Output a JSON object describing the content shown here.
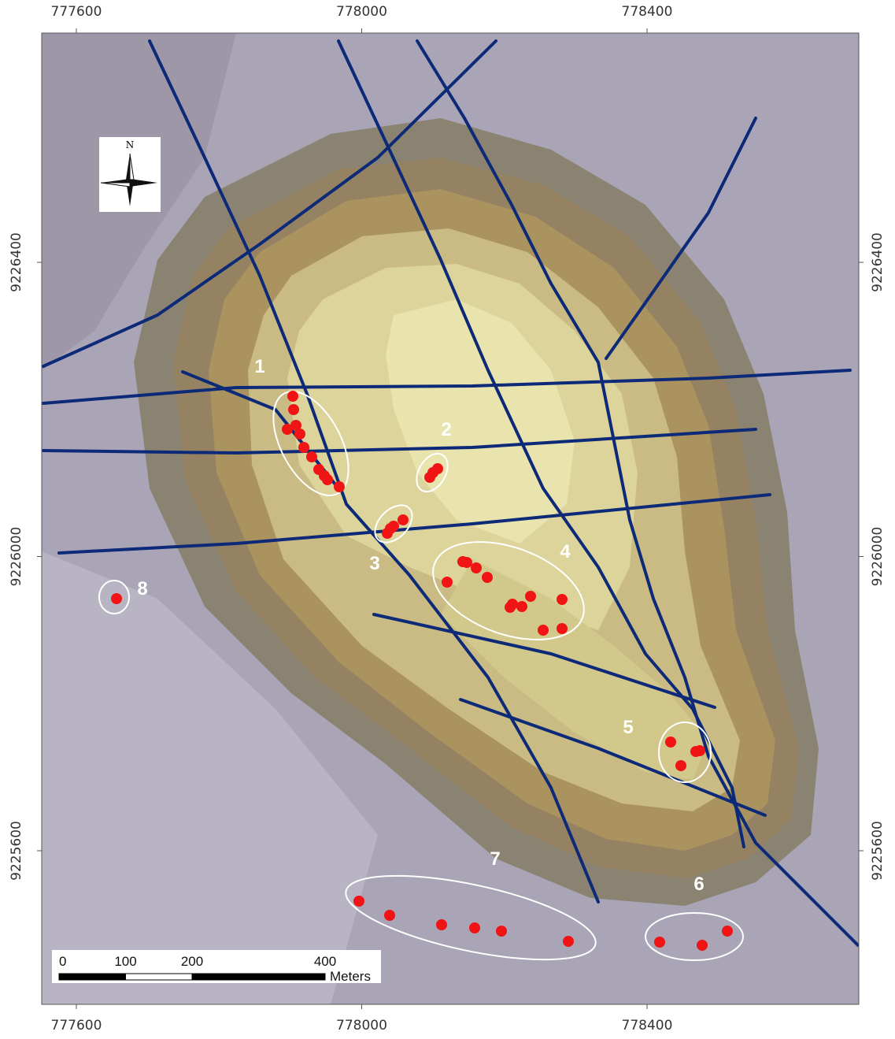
{
  "map": {
    "x_ticks": [
      777600,
      778000,
      778400
    ],
    "y_ticks": [
      9226400,
      9226000,
      9225600
    ],
    "clusters": [
      "1",
      "2",
      "3",
      "4",
      "5",
      "6",
      "7",
      "8"
    ],
    "north": "N",
    "scale_bar": {
      "ticks": [
        0,
        100,
        200,
        400
      ],
      "unit": "Meters"
    }
  }
}
